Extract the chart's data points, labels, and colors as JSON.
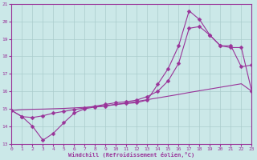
{
  "bg_color": "#cbe8e8",
  "grid_color": "#aacccc",
  "line_color": "#993399",
  "marker": "D",
  "markersize": 2.5,
  "linewidth": 0.8,
  "xlabel": "Windchill (Refroidissement éolien,°C)",
  "xlim": [
    0,
    23
  ],
  "ylim": [
    13,
    21
  ],
  "xticks": [
    0,
    1,
    2,
    3,
    4,
    5,
    6,
    7,
    8,
    9,
    10,
    11,
    12,
    13,
    14,
    15,
    16,
    17,
    18,
    19,
    20,
    21,
    22,
    23
  ],
  "yticks": [
    13,
    14,
    15,
    16,
    17,
    18,
    19,
    20,
    21
  ],
  "series": [
    {
      "x": [
        0,
        1,
        2,
        3,
        4,
        5,
        6,
        7,
        8,
        9,
        10,
        11,
        12,
        13,
        14,
        15,
        16,
        17,
        18,
        19,
        20,
        21,
        22,
        23
      ],
      "y": [
        14.9,
        14.55,
        14.0,
        13.2,
        13.6,
        14.2,
        14.75,
        15.0,
        15.1,
        15.15,
        15.25,
        15.3,
        15.35,
        15.5,
        16.4,
        17.3,
        18.6,
        20.6,
        20.1,
        19.2,
        18.6,
        18.6,
        17.4,
        17.5
      ],
      "has_markers": true
    },
    {
      "x": [
        0,
        1,
        2,
        3,
        4,
        5,
        6,
        7,
        8,
        9,
        10,
        11,
        12,
        13,
        14,
        15,
        16,
        17,
        18,
        19,
        20,
        21,
        22,
        23
      ],
      "y": [
        14.9,
        14.55,
        14.5,
        14.6,
        14.75,
        14.85,
        14.95,
        15.05,
        15.15,
        15.25,
        15.35,
        15.4,
        15.5,
        15.7,
        16.0,
        16.6,
        17.6,
        19.6,
        19.7,
        19.2,
        18.6,
        18.5,
        18.5,
        16.0
      ],
      "has_markers": true
    },
    {
      "x": [
        0,
        1,
        2,
        3,
        4,
        5,
        6,
        7,
        8,
        9,
        10,
        11,
        12,
        13,
        14,
        15,
        16,
        17,
        18,
        19,
        20,
        21,
        22,
        23
      ],
      "y": [
        14.9,
        14.95,
        14.97,
        14.98,
        15.0,
        15.02,
        15.05,
        15.08,
        15.12,
        15.18,
        15.25,
        15.33,
        15.42,
        15.52,
        15.62,
        15.72,
        15.82,
        15.93,
        16.03,
        16.13,
        16.23,
        16.33,
        16.43,
        16.0
      ],
      "has_markers": false
    }
  ]
}
